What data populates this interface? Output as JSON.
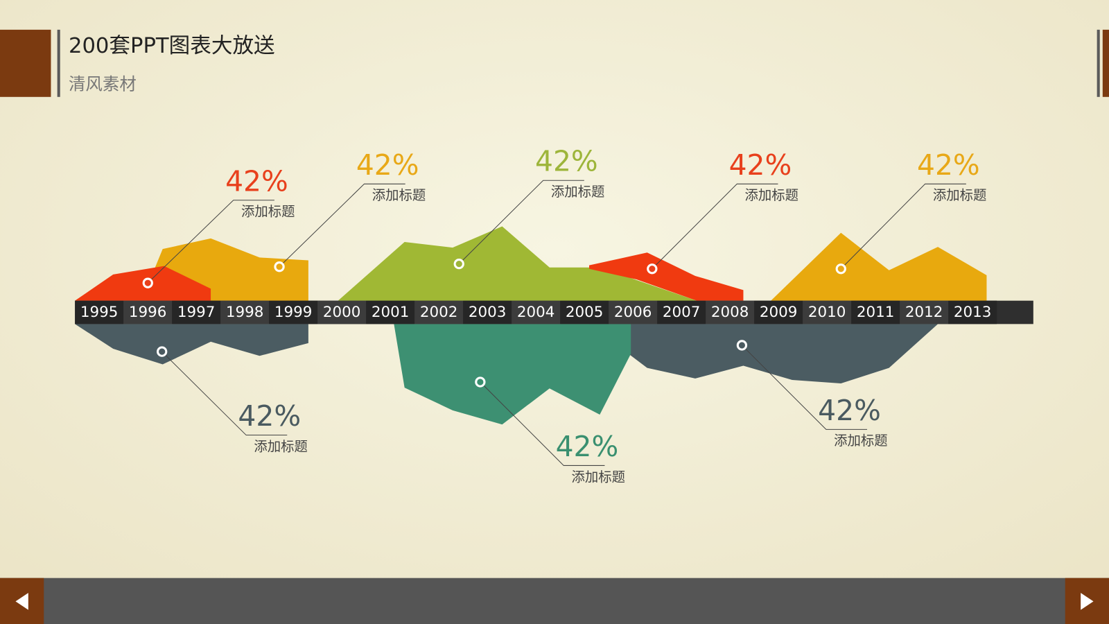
{
  "header": {
    "title": "200套PPT图表大放送",
    "subtitle": "清风素材"
  },
  "timeline": {
    "years": [
      "1995",
      "1996",
      "1997",
      "1998",
      "1999",
      "2000",
      "2001",
      "2002",
      "2003",
      "2004",
      "2005",
      "2006",
      "2007",
      "2008",
      "2009",
      "2010",
      "2011",
      "2012",
      "2013"
    ]
  },
  "callouts": [
    {
      "value": "42%",
      "label": "添加标题"
    },
    {
      "value": "42%",
      "label": "添加标题"
    },
    {
      "value": "42%",
      "label": "添加标题"
    },
    {
      "value": "42%",
      "label": "添加标题"
    },
    {
      "value": "42%",
      "label": "添加标题"
    },
    {
      "value": "42%",
      "label": "添加标题"
    },
    {
      "value": "42%",
      "label": "添加标题"
    },
    {
      "value": "42%",
      "label": "添加标题"
    }
  ]
}
